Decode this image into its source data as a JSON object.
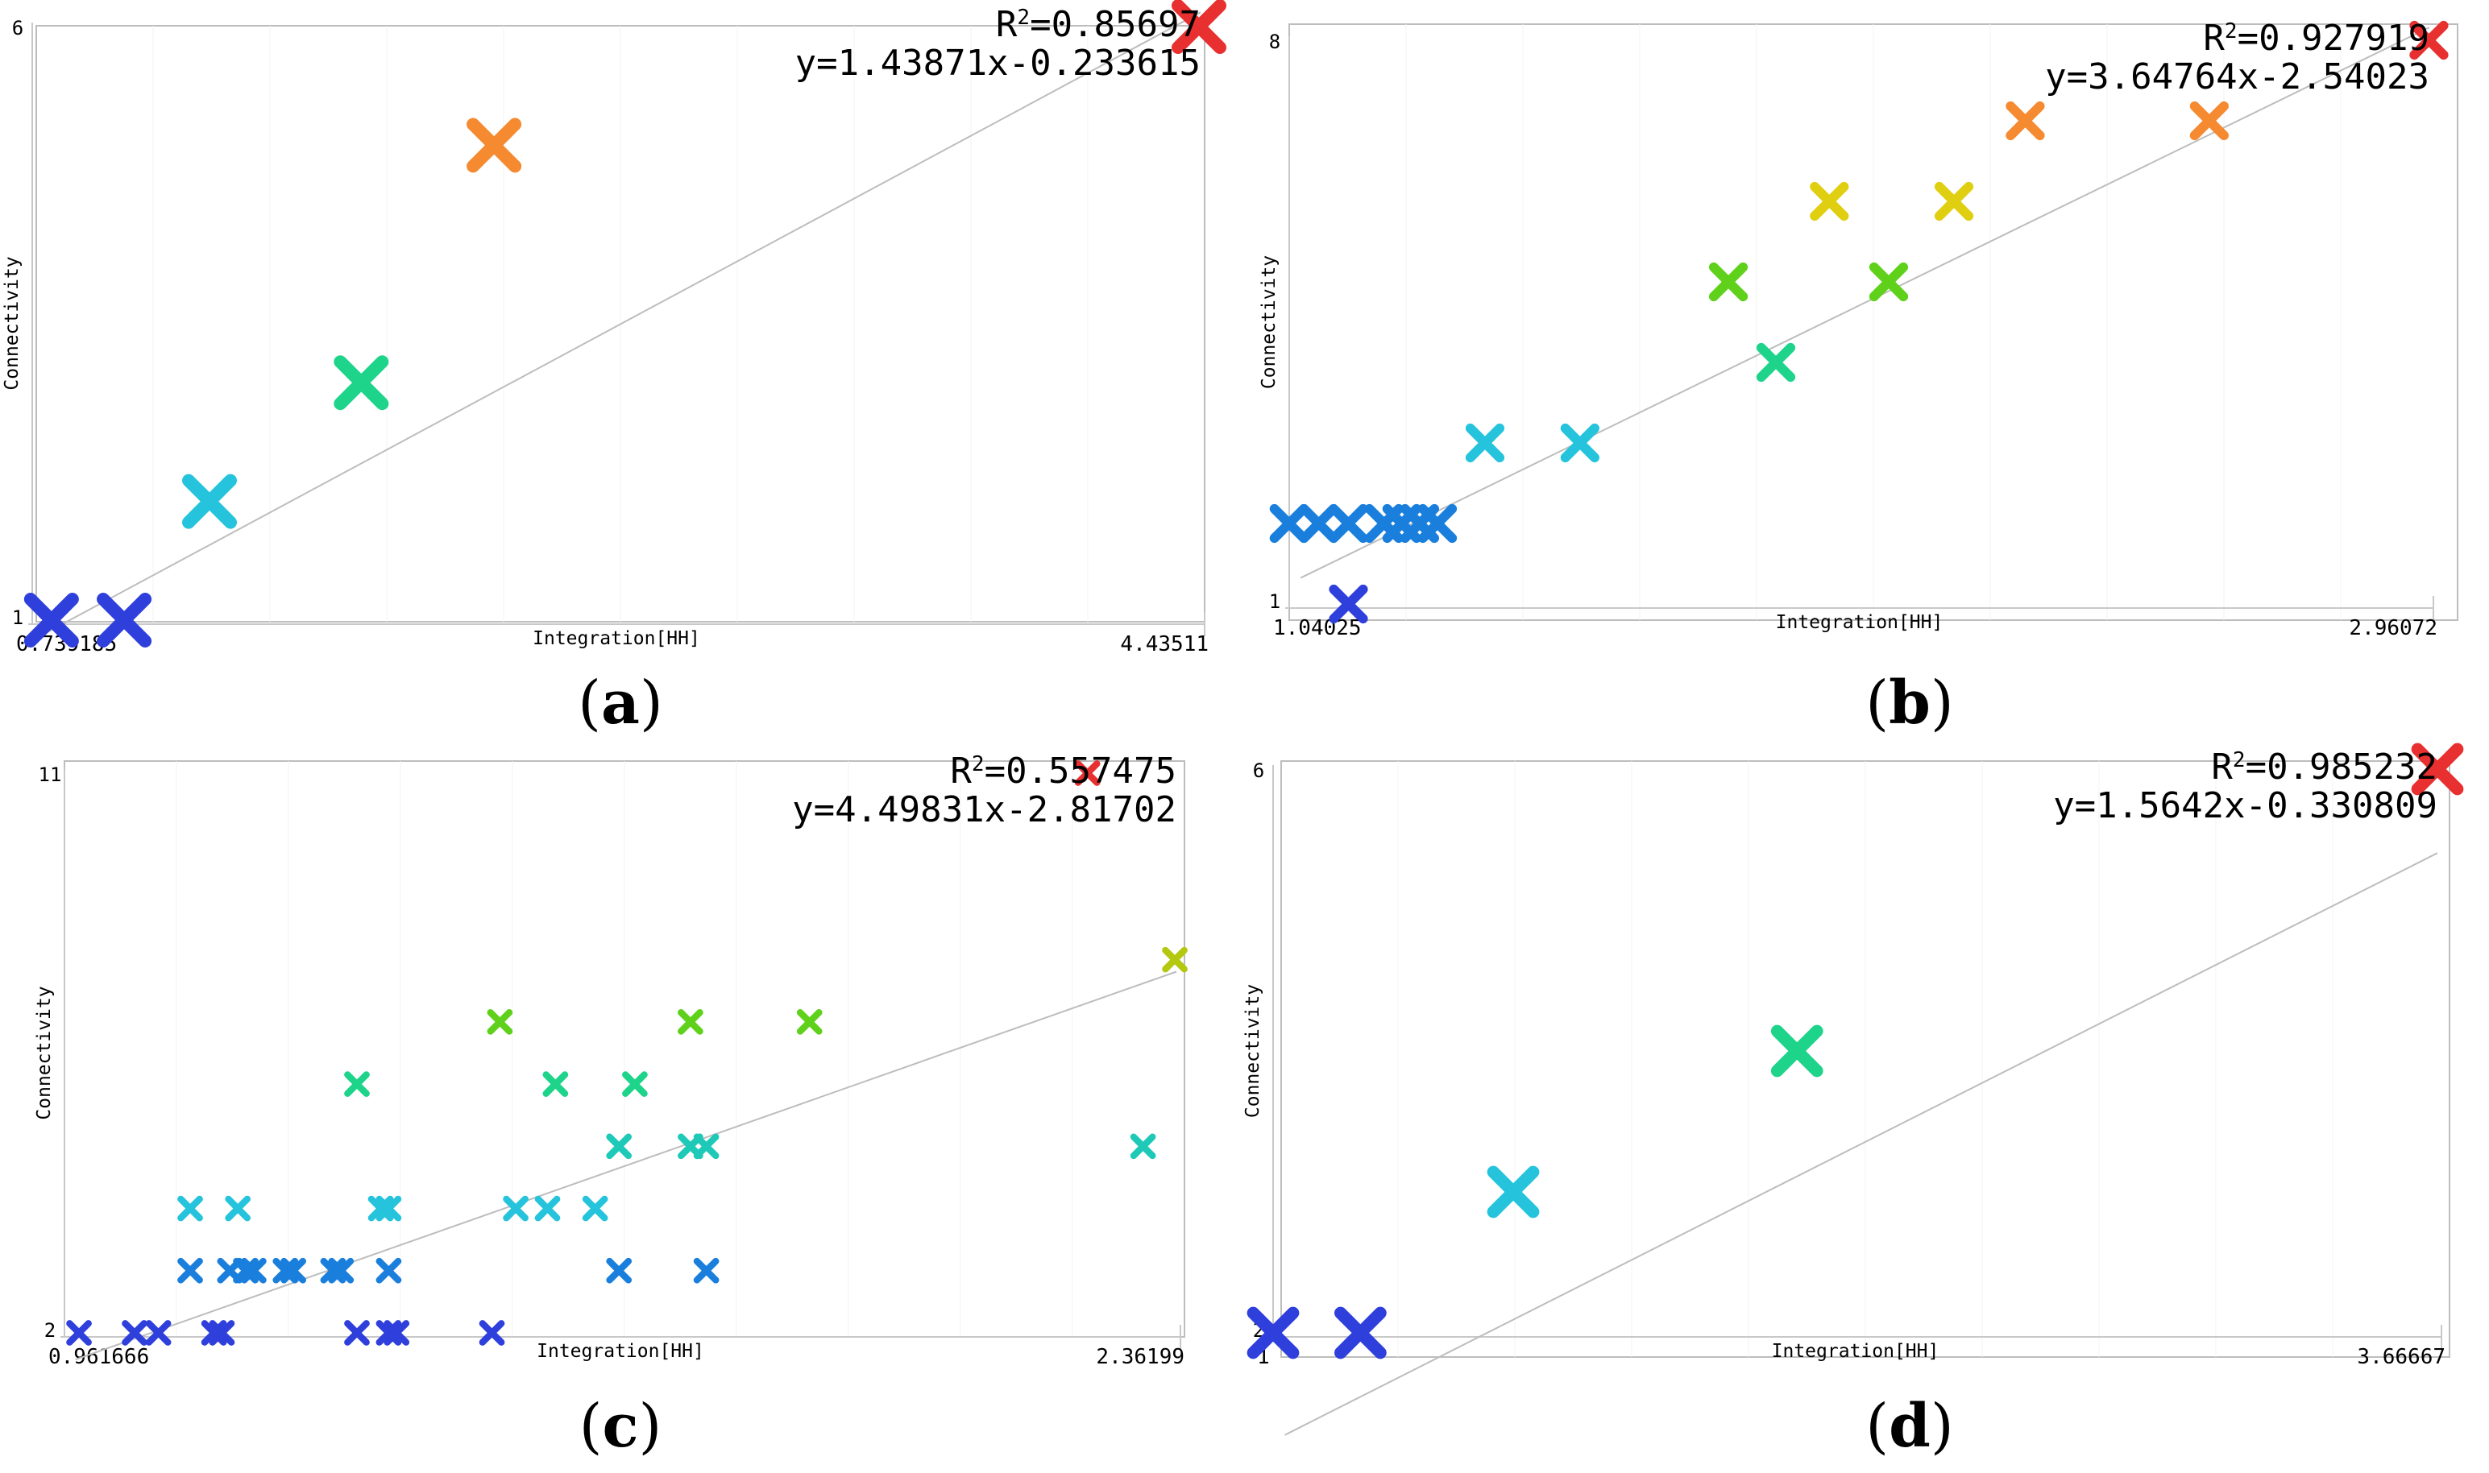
{
  "chart_data": [
    {
      "id": "a",
      "type": "scatter",
      "caption": "(a)",
      "xlabel": "Integration[HH]",
      "ylabel": "Connectivity",
      "xlim": [
        0.739185,
        4.43511
      ],
      "ylim": [
        1,
        6
      ],
      "x_min_label": "0.739185",
      "x_max_label": "4.43511",
      "y_min_label": "1",
      "y_max_label": "6",
      "r2_prefix": "R",
      "r2_value": "=0.85697",
      "equation": "y=1.43871x-0.233615",
      "fit": {
        "slope": 1.43871,
        "intercept": -0.233615
      },
      "marker_scale": 1.0,
      "points": [
        {
          "x": 0.8,
          "y": 1.0,
          "color": "#2f3fdc"
        },
        {
          "x": 1.03,
          "y": 1.0,
          "color": "#2f3fdc"
        },
        {
          "x": 1.3,
          "y": 2.0,
          "color": "#25c4dc"
        },
        {
          "x": 1.78,
          "y": 3.0,
          "color": "#1ed48a"
        },
        {
          "x": 2.2,
          "y": 5.0,
          "color": "#f58a30"
        },
        {
          "x": 4.43,
          "y": 6.0,
          "color": "#e83030"
        }
      ]
    },
    {
      "id": "b",
      "type": "scatter",
      "caption": "(b)",
      "xlabel": "Integration[HH]",
      "ylabel": "Connectivity",
      "xlim": [
        1.04025,
        2.96072
      ],
      "ylim": [
        1,
        8
      ],
      "x_min_label": "1.04025",
      "x_max_label": "2.96072",
      "y_min_label": "1",
      "y_max_label": "8",
      "r2_prefix": "R",
      "r2_value": "=0.927919",
      "equation": "y=3.64764x-2.54023",
      "fit": {
        "slope": 3.64764,
        "intercept": -2.54023
      },
      "marker_scale": 0.7,
      "points": [
        {
          "x": 1.14,
          "y": 1.0,
          "color": "#2f3fdc"
        },
        {
          "x": 1.04,
          "y": 2.0,
          "color": "#1a7fdc"
        },
        {
          "x": 1.09,
          "y": 2.0,
          "color": "#1a7fdc"
        },
        {
          "x": 1.14,
          "y": 2.0,
          "color": "#1a7fdc"
        },
        {
          "x": 1.2,
          "y": 2.0,
          "color": "#1a7fdc"
        },
        {
          "x": 1.23,
          "y": 2.0,
          "color": "#1a7fdc"
        },
        {
          "x": 1.26,
          "y": 2.0,
          "color": "#1a7fdc"
        },
        {
          "x": 1.29,
          "y": 2.0,
          "color": "#1a7fdc"
        },
        {
          "x": 1.37,
          "y": 3.0,
          "color": "#25c4dc"
        },
        {
          "x": 1.53,
          "y": 3.0,
          "color": "#25c4dc"
        },
        {
          "x": 1.86,
          "y": 4.0,
          "color": "#1ed48a"
        },
        {
          "x": 1.78,
          "y": 5.0,
          "color": "#5fd11a"
        },
        {
          "x": 2.05,
          "y": 5.0,
          "color": "#5fd11a"
        },
        {
          "x": 1.95,
          "y": 6.0,
          "color": "#e0cf10"
        },
        {
          "x": 2.16,
          "y": 6.0,
          "color": "#e0cf10"
        },
        {
          "x": 2.28,
          "y": 7.0,
          "color": "#f58a30"
        },
        {
          "x": 2.59,
          "y": 7.0,
          "color": "#f58a30"
        },
        {
          "x": 2.96,
          "y": 8.0,
          "color": "#e83030"
        }
      ]
    },
    {
      "id": "c",
      "type": "scatter",
      "caption": "(c)",
      "xlabel": "Integration[HH]",
      "ylabel": "Connectivity",
      "xlim": [
        0.961666,
        2.36199
      ],
      "ylim": [
        2,
        11
      ],
      "x_min_label": "0.961666",
      "x_max_label": "2.36199",
      "y_min_label": "2",
      "y_max_label": "11",
      "r2_prefix": "R",
      "r2_value": "=0.557475",
      "equation": "y=4.49831x-2.81702",
      "fit": {
        "slope": 4.49831,
        "intercept": -2.81702
      },
      "marker_scale": 0.45,
      "points": [
        {
          "x": 0.98,
          "y": 2,
          "color": "#2f3fdc"
        },
        {
          "x": 1.05,
          "y": 2,
          "color": "#2f3fdc"
        },
        {
          "x": 1.08,
          "y": 2,
          "color": "#2f3fdc"
        },
        {
          "x": 1.15,
          "y": 2,
          "color": "#2f3fdc"
        },
        {
          "x": 1.16,
          "y": 2,
          "color": "#2f3fdc"
        },
        {
          "x": 1.33,
          "y": 2,
          "color": "#2f3fdc"
        },
        {
          "x": 1.37,
          "y": 2,
          "color": "#2f3fdc"
        },
        {
          "x": 1.38,
          "y": 2,
          "color": "#2f3fdc"
        },
        {
          "x": 1.5,
          "y": 2,
          "color": "#2f3fdc"
        },
        {
          "x": 1.12,
          "y": 3,
          "color": "#1a7fdc"
        },
        {
          "x": 1.17,
          "y": 3,
          "color": "#1a7fdc"
        },
        {
          "x": 1.19,
          "y": 3,
          "color": "#1a7fdc"
        },
        {
          "x": 1.2,
          "y": 3,
          "color": "#1a7fdc"
        },
        {
          "x": 1.24,
          "y": 3,
          "color": "#1a7fdc"
        },
        {
          "x": 1.25,
          "y": 3,
          "color": "#1a7fdc"
        },
        {
          "x": 1.3,
          "y": 3,
          "color": "#1a7fdc"
        },
        {
          "x": 1.31,
          "y": 3,
          "color": "#1a7fdc"
        },
        {
          "x": 1.37,
          "y": 3,
          "color": "#1a7fdc"
        },
        {
          "x": 1.66,
          "y": 3,
          "color": "#1a7fdc"
        },
        {
          "x": 1.77,
          "y": 3,
          "color": "#1a7fdc"
        },
        {
          "x": 1.12,
          "y": 4,
          "color": "#25c4dc"
        },
        {
          "x": 1.18,
          "y": 4,
          "color": "#25c4dc"
        },
        {
          "x": 1.36,
          "y": 4,
          "color": "#25c4dc"
        },
        {
          "x": 1.37,
          "y": 4,
          "color": "#25c4dc"
        },
        {
          "x": 1.53,
          "y": 4,
          "color": "#25c4dc"
        },
        {
          "x": 1.57,
          "y": 4,
          "color": "#25c4dc"
        },
        {
          "x": 1.63,
          "y": 4,
          "color": "#25c4dc"
        },
        {
          "x": 1.66,
          "y": 5,
          "color": "#1ec9b8"
        },
        {
          "x": 1.75,
          "y": 5,
          "color": "#1ec9b8"
        },
        {
          "x": 1.77,
          "y": 5,
          "color": "#1ec9b8"
        },
        {
          "x": 2.32,
          "y": 5,
          "color": "#1ec9b8"
        },
        {
          "x": 1.33,
          "y": 6,
          "color": "#1ed48a"
        },
        {
          "x": 1.58,
          "y": 6,
          "color": "#1ed48a"
        },
        {
          "x": 1.68,
          "y": 6,
          "color": "#1ed48a"
        },
        {
          "x": 1.51,
          "y": 7,
          "color": "#5fd11a"
        },
        {
          "x": 1.75,
          "y": 7,
          "color": "#5fd11a"
        },
        {
          "x": 1.9,
          "y": 7,
          "color": "#5fd11a"
        },
        {
          "x": 2.36,
          "y": 8,
          "color": "#b4c810"
        },
        {
          "x": 2.25,
          "y": 11,
          "color": "#e83030"
        }
      ]
    },
    {
      "id": "d",
      "type": "scatter",
      "caption": "(d)",
      "xlabel": "Integration[HH]",
      "ylabel": "Connectivity",
      "xlim": [
        1,
        3.66667
      ],
      "ylim": [
        2,
        6
      ],
      "x_min_label": "1",
      "x_max_label": "3.66667",
      "y_min_label": "2",
      "y_max_label": "6",
      "r2_prefix": "R",
      "r2_value": "=0.985232",
      "equation": "y=1.5642x-0.330809",
      "fit": {
        "slope": 1.5642,
        "intercept": -0.330809
      },
      "marker_scale": 0.95,
      "points": [
        {
          "x": 1.0,
          "y": 2.0,
          "color": "#2f3fdc"
        },
        {
          "x": 1.2,
          "y": 2.0,
          "color": "#2f3fdc"
        },
        {
          "x": 1.55,
          "y": 3.0,
          "color": "#25c4dc"
        },
        {
          "x": 2.2,
          "y": 4.0,
          "color": "#1ed48a"
        },
        {
          "x": 3.66667,
          "y": 6.0,
          "color": "#e83030"
        }
      ]
    }
  ]
}
